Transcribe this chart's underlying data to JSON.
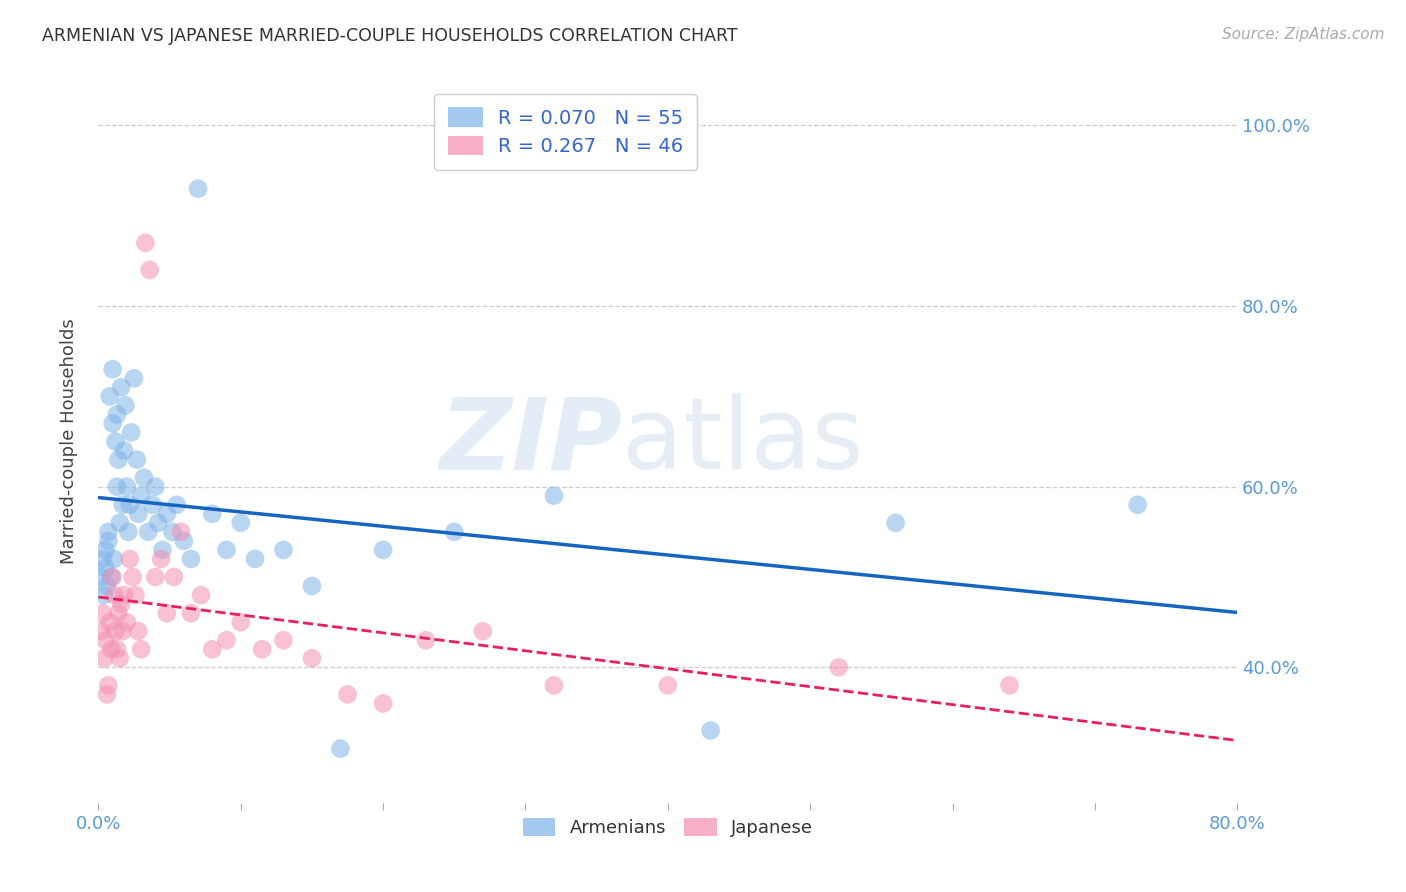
{
  "title": "ARMENIAN VS JAPANESE MARRIED-COUPLE HOUSEHOLDS CORRELATION CHART",
  "source": "Source: ZipAtlas.com",
  "ylabel": "Married-couple Households",
  "xlim": [
    0.0,
    0.8
  ],
  "ylim": [
    0.25,
    1.05
  ],
  "ytick_labels": [
    "40.0%",
    "60.0%",
    "80.0%",
    "100.0%"
  ],
  "ytick_positions": [
    0.4,
    0.6,
    0.8,
    1.0
  ],
  "xtick_positions": [
    0.0,
    0.1,
    0.2,
    0.3,
    0.4,
    0.5,
    0.6,
    0.7,
    0.8
  ],
  "xtick_labels": [
    "0.0%",
    "",
    "",
    "",
    "",
    "",
    "",
    "",
    "80.0%"
  ],
  "legend_line1": "R = 0.070   N = 55",
  "legend_line2": "R = 0.267   N = 46",
  "blue_scatter_color": "#7EB3E8",
  "pink_scatter_color": "#F48FB1",
  "blue_line_color": "#1565C0",
  "pink_line_color": "#E91E63",
  "axis_tick_color": "#5B9BD5",
  "grid_color": "#CCCCCC",
  "background_color": "#FFFFFF",
  "armenians_x": [
    0.002,
    0.003,
    0.004,
    0.005,
    0.005,
    0.006,
    0.007,
    0.007,
    0.008,
    0.009,
    0.01,
    0.01,
    0.011,
    0.012,
    0.013,
    0.013,
    0.014,
    0.015,
    0.016,
    0.017,
    0.018,
    0.019,
    0.02,
    0.021,
    0.022,
    0.023,
    0.025,
    0.027,
    0.028,
    0.03,
    0.032,
    0.035,
    0.038,
    0.04,
    0.042,
    0.045,
    0.048,
    0.052,
    0.055,
    0.06,
    0.065,
    0.07,
    0.08,
    0.09,
    0.1,
    0.11,
    0.13,
    0.15,
    0.17,
    0.2,
    0.25,
    0.32,
    0.43,
    0.56,
    0.73
  ],
  "armenians_y": [
    0.5,
    0.52,
    0.48,
    0.51,
    0.53,
    0.49,
    0.55,
    0.54,
    0.7,
    0.5,
    0.67,
    0.73,
    0.52,
    0.65,
    0.6,
    0.68,
    0.63,
    0.56,
    0.71,
    0.58,
    0.64,
    0.69,
    0.6,
    0.55,
    0.58,
    0.66,
    0.72,
    0.63,
    0.57,
    0.59,
    0.61,
    0.55,
    0.58,
    0.6,
    0.56,
    0.53,
    0.57,
    0.55,
    0.58,
    0.54,
    0.52,
    0.93,
    0.57,
    0.53,
    0.56,
    0.52,
    0.53,
    0.49,
    0.31,
    0.53,
    0.55,
    0.59,
    0.33,
    0.56,
    0.58
  ],
  "japanese_x": [
    0.002,
    0.003,
    0.004,
    0.005,
    0.006,
    0.007,
    0.008,
    0.009,
    0.01,
    0.011,
    0.012,
    0.013,
    0.014,
    0.015,
    0.016,
    0.017,
    0.018,
    0.02,
    0.022,
    0.024,
    0.026,
    0.028,
    0.03,
    0.033,
    0.036,
    0.04,
    0.044,
    0.048,
    0.053,
    0.058,
    0.065,
    0.072,
    0.08,
    0.09,
    0.1,
    0.115,
    0.13,
    0.15,
    0.175,
    0.2,
    0.23,
    0.27,
    0.32,
    0.4,
    0.52,
    0.64
  ],
  "japanese_y": [
    0.44,
    0.46,
    0.41,
    0.43,
    0.37,
    0.38,
    0.45,
    0.42,
    0.5,
    0.48,
    0.44,
    0.42,
    0.46,
    0.41,
    0.47,
    0.44,
    0.48,
    0.45,
    0.52,
    0.5,
    0.48,
    0.44,
    0.42,
    0.87,
    0.84,
    0.5,
    0.52,
    0.46,
    0.5,
    0.55,
    0.46,
    0.48,
    0.42,
    0.43,
    0.45,
    0.42,
    0.43,
    0.41,
    0.37,
    0.36,
    0.43,
    0.44,
    0.38,
    0.38,
    0.4,
    0.38
  ]
}
